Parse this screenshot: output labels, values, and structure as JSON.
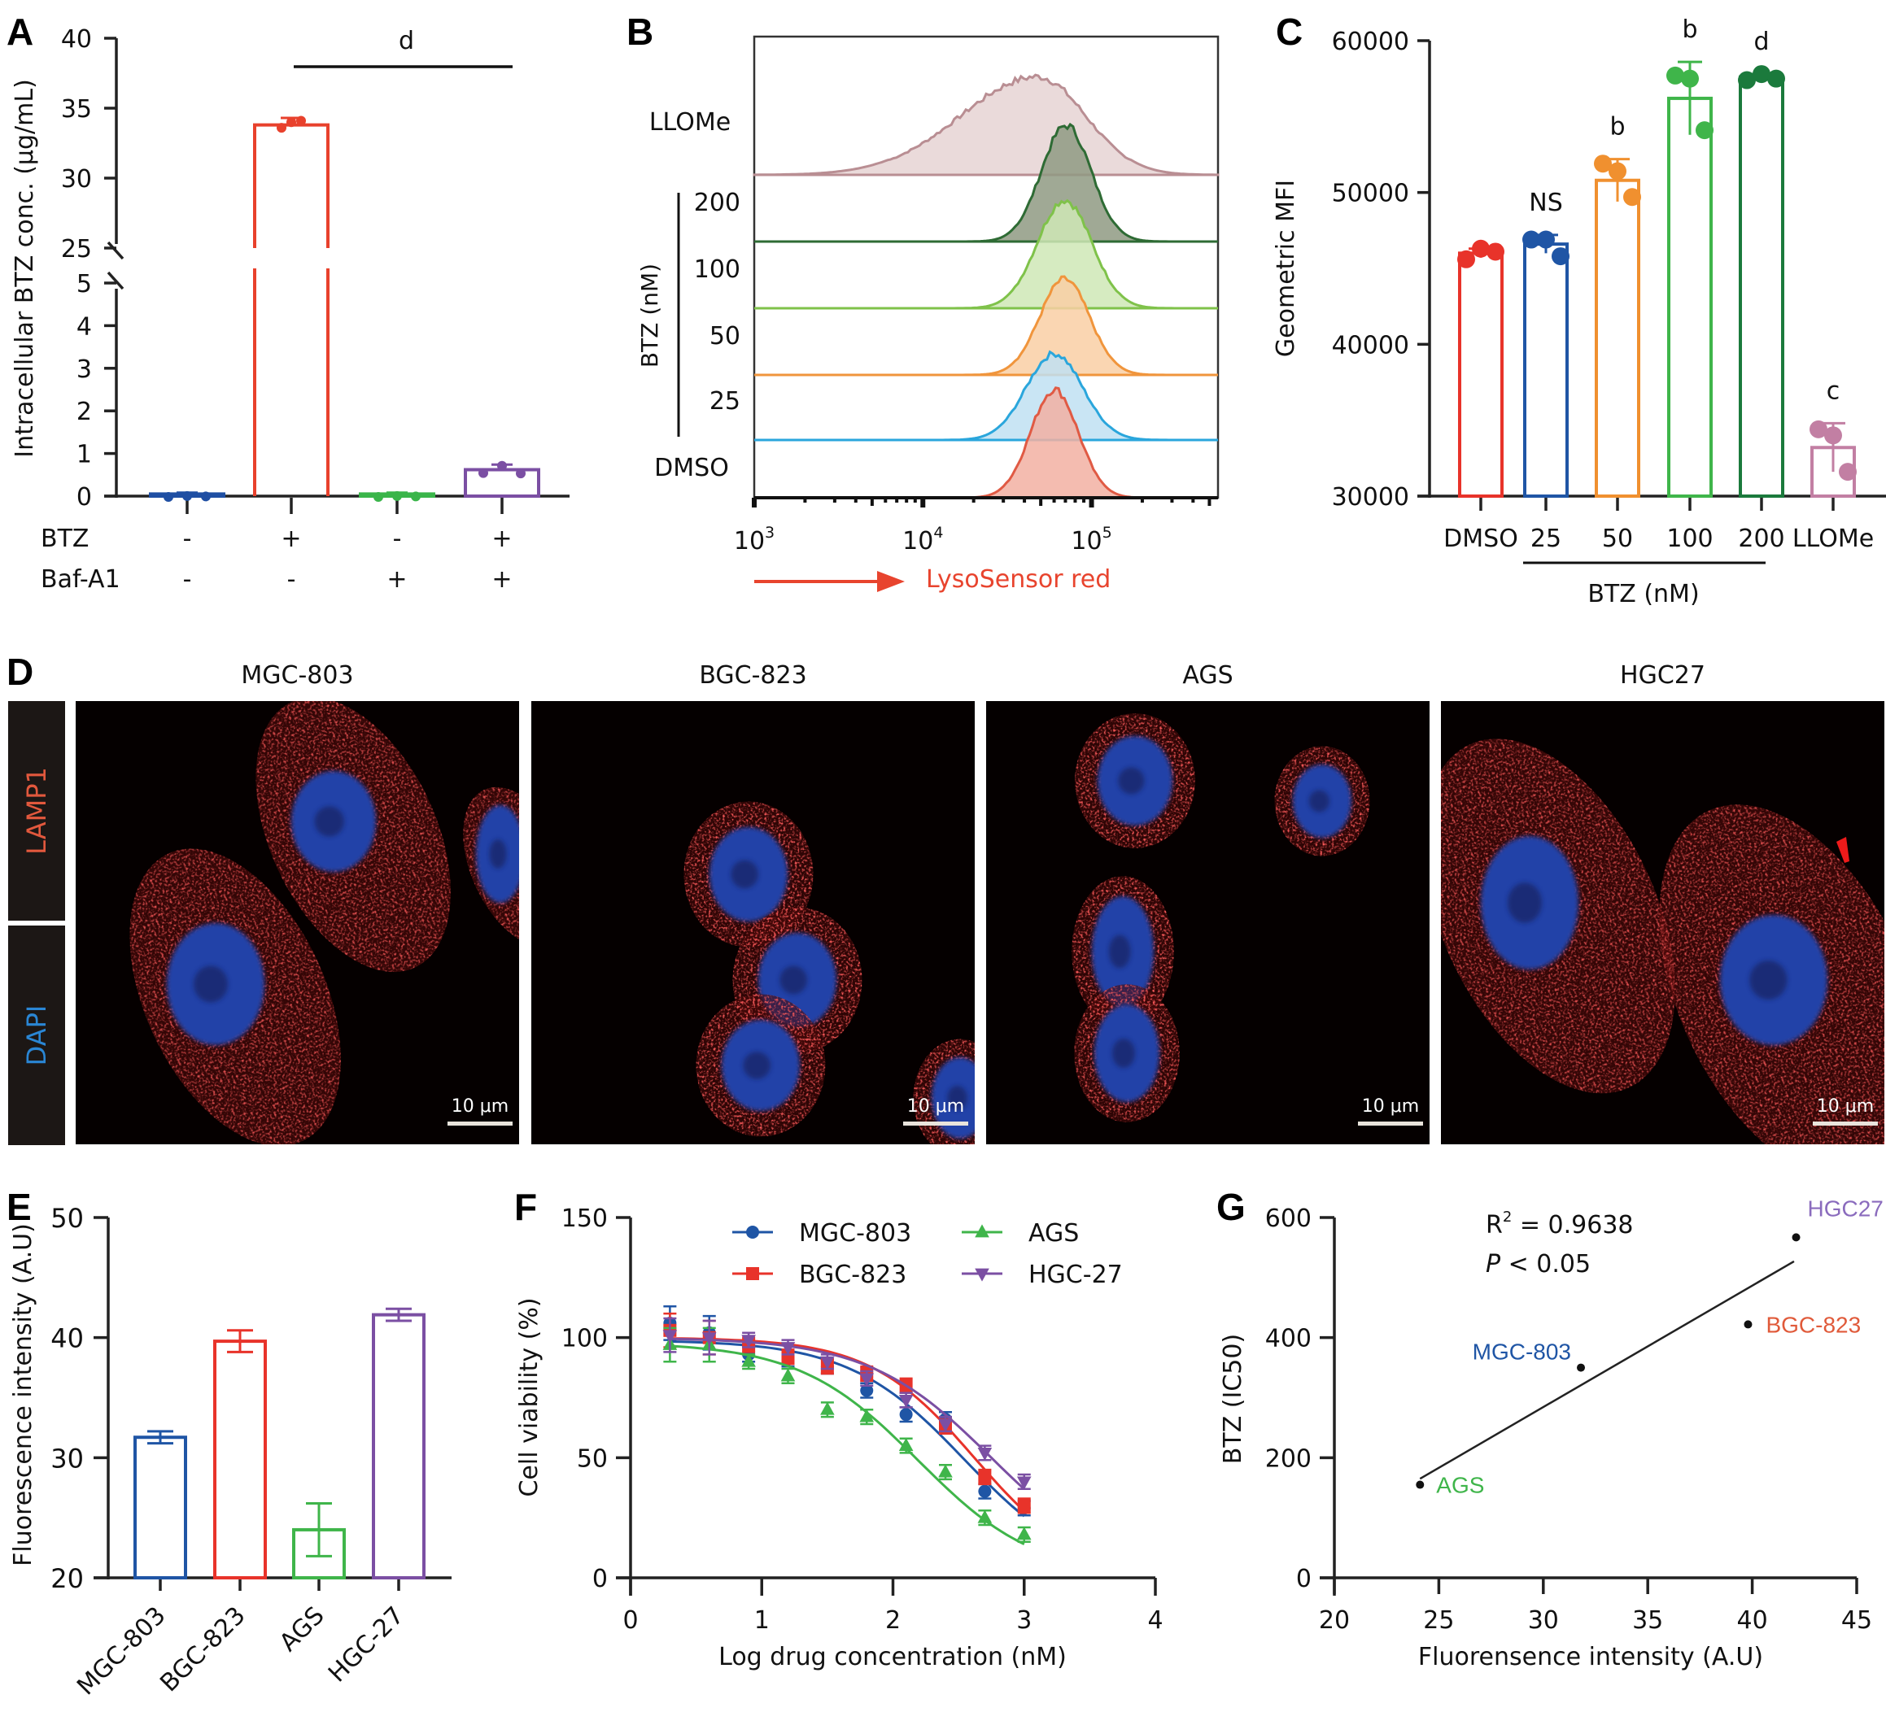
{
  "chart_data": [
    {
      "id": "A",
      "type": "bar",
      "panel_label": "A",
      "ylabel": "Intracellular BTZ conc. (μg/mL)",
      "y_ticks_lower": [
        0,
        1,
        2,
        3,
        4,
        5
      ],
      "y_ticks_upper": [
        25,
        30,
        35,
        40
      ],
      "ylim_lower": [
        0,
        5
      ],
      "ylim_upper": [
        25,
        40
      ],
      "axis_break": true,
      "row_labels": [
        "BTZ",
        "Baf-A1"
      ],
      "groups": [
        {
          "btz": "-",
          "baf": "-",
          "value": 0.05,
          "err": 0.03,
          "points": [
            0.02,
            0.04,
            0.03
          ],
          "color": "#1f4fa3"
        },
        {
          "btz": "+",
          "baf": "-",
          "value": 33.8,
          "err": 0.5,
          "points": [
            33.6,
            34.0,
            34.1
          ],
          "color": "#e8412c"
        },
        {
          "btz": "-",
          "baf": "+",
          "value": 0.05,
          "err": 0.03,
          "points": [
            0.02,
            0.04,
            0.03
          ],
          "color": "#3ab54a"
        },
        {
          "btz": "+",
          "baf": "+",
          "value": 0.62,
          "err": 0.12,
          "points": [
            0.58,
            0.75,
            0.57
          ],
          "color": "#7b4fa3"
        }
      ],
      "significance": {
        "label": "d",
        "from_group": 1,
        "to_group": 3
      }
    },
    {
      "id": "B",
      "type": "area",
      "panel_label": "B",
      "subtype": "flow-cytometry-histogram-overlay",
      "xlabel": "LysoSensor red",
      "x_scale": "log",
      "x_ticks": [
        "10^3",
        "10^4",
        "10^5"
      ],
      "xlim_log10": [
        3,
        5.75
      ],
      "group_label": "BTZ (nM)",
      "series": [
        {
          "name": "LLOMe",
          "peak_log10": 4.68,
          "width": 0.42,
          "skew": -0.5,
          "color": "#b98e93",
          "fill": "#e6d3d4"
        },
        {
          "name": "200",
          "peak_log10": 4.85,
          "width": 0.22,
          "skew": 0,
          "color": "#2e6b34",
          "fill": "#8f9a83"
        },
        {
          "name": "100",
          "peak_log10": 4.84,
          "width": 0.24,
          "skew": 0,
          "color": "#7fc24a",
          "fill": "#cfe7b6"
        },
        {
          "name": "50",
          "peak_log10": 4.84,
          "width": 0.22,
          "skew": 0,
          "color": "#f0953c",
          "fill": "#f9cfa5"
        },
        {
          "name": "25",
          "peak_log10": 4.78,
          "width": 0.25,
          "skew": 0,
          "color": "#2aa6dc",
          "fill": "#bfe0f2"
        },
        {
          "name": "DMSO",
          "peak_log10": 4.78,
          "width": 0.21,
          "skew": 0,
          "color": "#e05a44",
          "fill": "#f2b0a2"
        }
      ]
    },
    {
      "id": "C",
      "type": "bar",
      "panel_label": "C",
      "ylabel": "Geometric MFI",
      "ylim": [
        30000,
        60000
      ],
      "y_ticks": [
        30000,
        40000,
        50000,
        60000
      ],
      "group_label": "BTZ (nM)",
      "categories": [
        "DMSO",
        "25",
        "50",
        "100",
        "200",
        "LLOMe"
      ],
      "values": [
        46000,
        46600,
        50800,
        56200,
        57600,
        33200
      ],
      "errors": [
        300,
        600,
        1400,
        2400,
        200,
        1600
      ],
      "points": [
        [
          45600,
          46300,
          46100
        ],
        [
          46900,
          46900,
          45800
        ],
        [
          51900,
          51400,
          49700
        ],
        [
          57700,
          57500,
          54100
        ],
        [
          57400,
          57800,
          57500
        ],
        [
          34400,
          34000,
          31600
        ]
      ],
      "significance": [
        "",
        "NS",
        "b",
        "b",
        "d",
        "c"
      ],
      "colors": [
        "#e8332a",
        "#1f55a5",
        "#f0902f",
        "#3fb54a",
        "#1b7a3c",
        "#c27fa3"
      ]
    },
    {
      "id": "E",
      "type": "bar",
      "panel_label": "E",
      "ylabel": "Fluorescence intensity (A.U)",
      "ylim": [
        20,
        50
      ],
      "y_ticks": [
        20,
        30,
        40,
        50
      ],
      "categories": [
        "MGC-803",
        "BGC-823",
        "AGS",
        "HGC-27"
      ],
      "values": [
        31.7,
        39.7,
        24.0,
        41.9
      ],
      "errors": [
        0.5,
        0.9,
        2.2,
        0.5
      ],
      "colors": [
        "#1f55a5",
        "#e8332a",
        "#3fb54a",
        "#7b4fa3"
      ]
    },
    {
      "id": "F",
      "type": "line",
      "panel_label": "F",
      "xlabel": "Log drug concentration (nM)",
      "ylabel": "Cell viability (%)",
      "xlim": [
        0,
        4
      ],
      "ylim": [
        0,
        150
      ],
      "x_ticks": [
        0,
        1,
        2,
        3,
        4
      ],
      "y_ticks": [
        0,
        50,
        100,
        150
      ],
      "x": [
        0.3,
        0.6,
        0.9,
        1.2,
        1.5,
        1.8,
        2.1,
        2.4,
        2.7,
        3.0
      ],
      "series": [
        {
          "name": "MGC-803",
          "marker": "circle",
          "color": "#1f55a5",
          "values": [
            106,
            102,
            93,
            91,
            88,
            78,
            68,
            66,
            36,
            29
          ],
          "fit": {
            "top": 99,
            "bottom": 0,
            "ic50_log": 2.54,
            "hill": 0.62
          }
        },
        {
          "name": "BGC-823",
          "marker": "square",
          "color": "#e8332a",
          "values": [
            103,
            100,
            97,
            92,
            88,
            85,
            80,
            63,
            42,
            30
          ],
          "fit": {
            "top": 100,
            "bottom": 0,
            "ic50_log": 2.62,
            "hill": 0.68
          }
        },
        {
          "name": "AGS",
          "marker": "triangle-up",
          "color": "#3fb54a",
          "values": [
            97,
            97,
            90,
            84,
            70,
            67,
            55,
            44,
            25,
            18
          ],
          "fit": {
            "top": 98,
            "bottom": 0,
            "ic50_log": 2.19,
            "hill": 0.6
          }
        },
        {
          "name": "HGC-27",
          "marker": "triangle-down",
          "color": "#7b4fa3",
          "values": [
            101,
            100,
            99,
            96,
            90,
            83,
            74,
            64,
            52,
            40
          ],
          "fit": {
            "top": 100,
            "bottom": 0,
            "ic50_log": 2.75,
            "hill": 0.58
          }
        }
      ],
      "legend_placement": "top"
    },
    {
      "id": "G",
      "type": "scatter",
      "panel_label": "G",
      "xlabel": "Fluorensence intensity (A.U)",
      "ylabel": "BTZ (IC50)",
      "xlim": [
        20,
        45
      ],
      "ylim": [
        0,
        600
      ],
      "x_ticks": [
        20,
        25,
        30,
        35,
        40,
        45
      ],
      "y_ticks": [
        0,
        200,
        400,
        600
      ],
      "points": [
        {
          "label": "AGS",
          "x": 24.1,
          "y": 155,
          "color": "#3fb54a"
        },
        {
          "label": "MGC-803",
          "x": 31.8,
          "y": 350,
          "color": "#1f55a5"
        },
        {
          "label": "BGC-823",
          "x": 39.8,
          "y": 422,
          "color": "#e05a3a"
        },
        {
          "label": "HGC27",
          "x": 42.1,
          "y": 567,
          "color": "#8a6bbd"
        }
      ],
      "fit_line": {
        "x0": 24.1,
        "y0": 165,
        "x1": 42.0,
        "y1": 527
      },
      "annotation_r2_prefix": "R",
      "annotation_r2_sup": "2",
      "annotation_r2_value": " = 0.9638",
      "annotation_p_italic": "P",
      "annotation_p_value": " < 0.05"
    }
  ],
  "panel_d": {
    "panel_label": "D",
    "side_labels": [
      {
        "text": "LAMP1",
        "color": "#e2583d"
      },
      {
        "text": "DAPI",
        "color": "#2a86d4"
      }
    ],
    "images": [
      {
        "title": "MGC-803",
        "scale_bar": "10 μm"
      },
      {
        "title": "BGC-823",
        "scale_bar": "10 μm"
      },
      {
        "title": "AGS",
        "scale_bar": "10 μm"
      },
      {
        "title": "HGC27",
        "scale_bar": "10 μm"
      }
    ]
  }
}
